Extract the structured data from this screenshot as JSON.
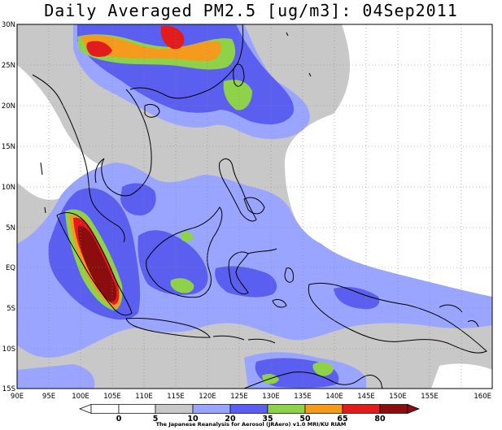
{
  "title": "Daily Averaged PM2.5 [ug/m3]: 04Sep2011",
  "credit": "The Japanese Reanalysis for Aerosol (JRAero) v1.0 MRI/KU RIAM",
  "lat_labels": [
    "30N",
    "25N",
    "20N",
    "15N",
    "10N",
    "5N",
    "EQ",
    "5S",
    "10S",
    "15S"
  ],
  "lon_labels": [
    "90E",
    "95E",
    "100E",
    "105E",
    "110E",
    "115E",
    "120E",
    "125E",
    "130E",
    "135E",
    "140E",
    "145E",
    "150E",
    "155E",
    "160E"
  ],
  "colorbar": {
    "levels": [
      "0",
      "5",
      "10",
      "20",
      "35",
      "50",
      "65",
      "80"
    ],
    "colors": [
      "#ffffff",
      "#ffffff",
      "#c8c8c8",
      "#9aa5ff",
      "#5a5ff0",
      "#8ed24a",
      "#f49b1e",
      "#e21c1c",
      "#8b0d0d"
    ]
  },
  "map_layers": {
    "background": "#c8c8c8",
    "clean": "#ffffff",
    "light": "#9aa5ff",
    "medium": "#5a5ff0",
    "green": "#8ed24a",
    "orange": "#f49b1e",
    "red": "#e21c1c",
    "darkred": "#8b0d0d",
    "grid": "#888888"
  }
}
